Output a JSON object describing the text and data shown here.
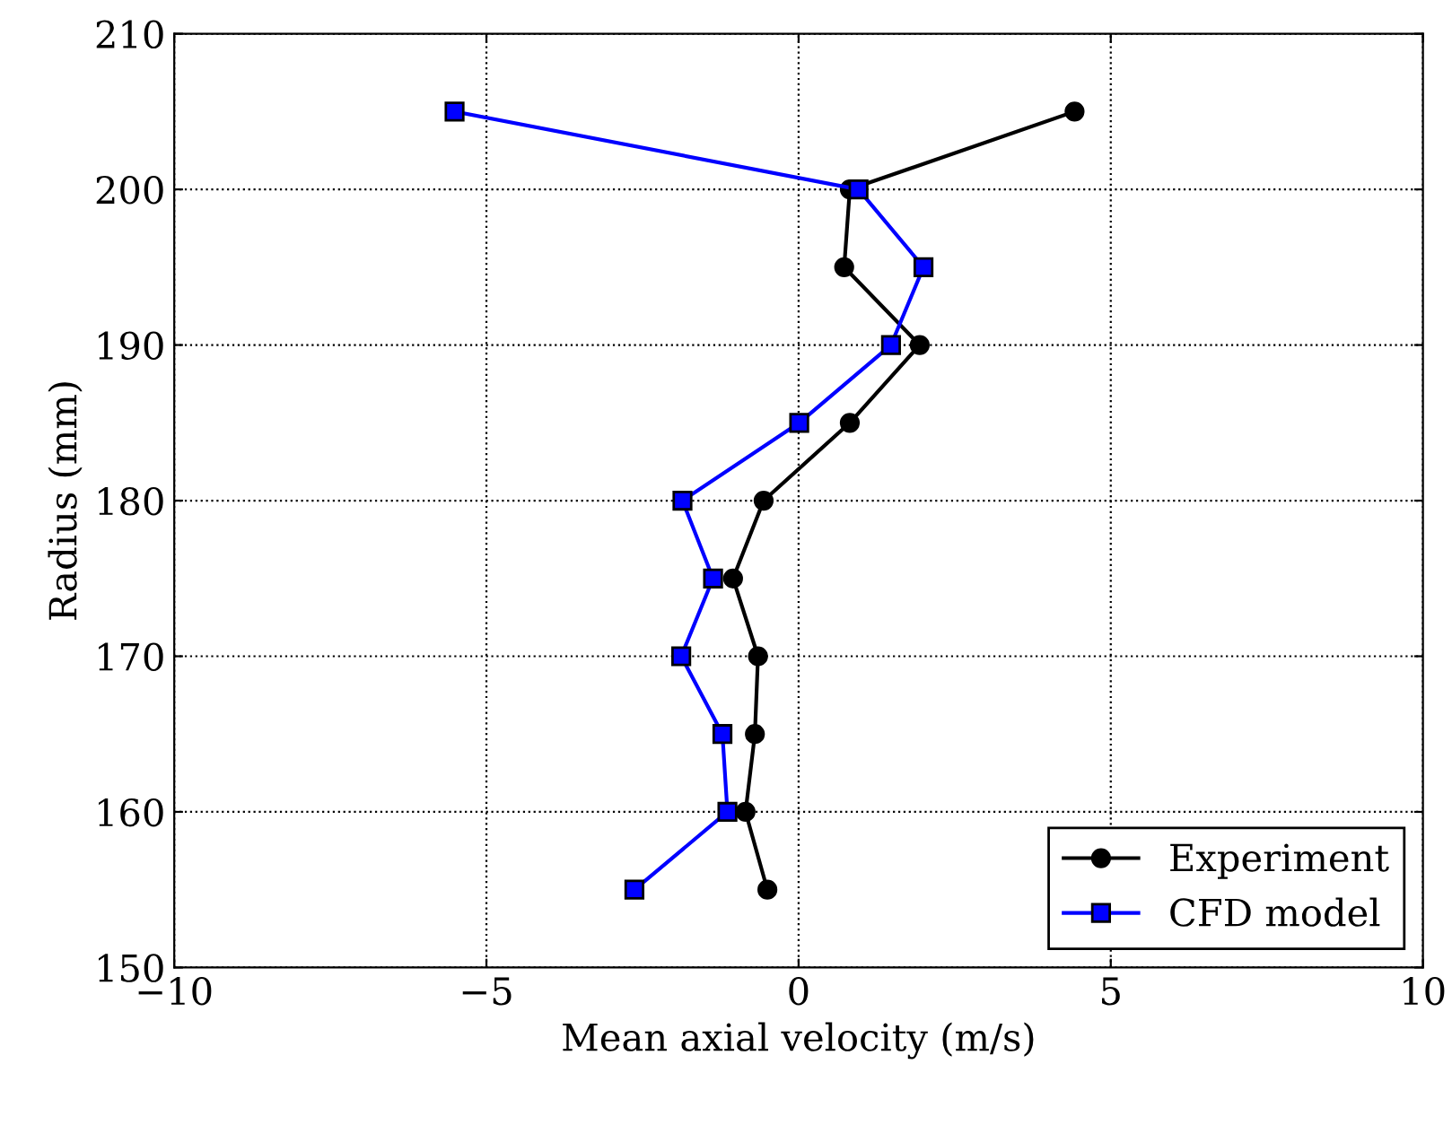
{
  "chart_data": {
    "type": "line",
    "xlabel": "Mean axial velocity (m/s)",
    "ylabel": "Radius (mm)",
    "xlim": [
      -10,
      10
    ],
    "xticks": [
      {
        "value": -10,
        "label": "−10"
      },
      {
        "value": -5,
        "label": "−5"
      },
      0,
      5,
      10
    ],
    "ylim": [
      150,
      210
    ],
    "yticks": [
      150,
      160,
      170,
      180,
      190,
      200,
      210
    ],
    "grid": true,
    "legend": "bottom right",
    "line_style": "solid",
    "series": [
      {
        "name": "Experiment",
        "color": "#000000",
        "marker": "circle",
        "x": [
          4.42,
          0.82,
          0.73,
          1.94,
          0.82,
          -0.56,
          -1.05,
          -0.65,
          -0.7,
          -0.85,
          -0.5
        ],
        "values": [
          205,
          200,
          195,
          190,
          185,
          180,
          175,
          170,
          165,
          160,
          155
        ]
      },
      {
        "name": "CFD model",
        "color": "#0000ff",
        "marker": "square",
        "x": [
          -5.51,
          0.96,
          2.0,
          1.48,
          0.01,
          -1.86,
          -1.37,
          -1.88,
          -1.22,
          -1.14,
          -2.63
        ],
        "values": [
          205,
          200,
          195,
          190,
          185,
          180,
          175,
          170,
          165,
          160,
          155
        ]
      }
    ]
  }
}
